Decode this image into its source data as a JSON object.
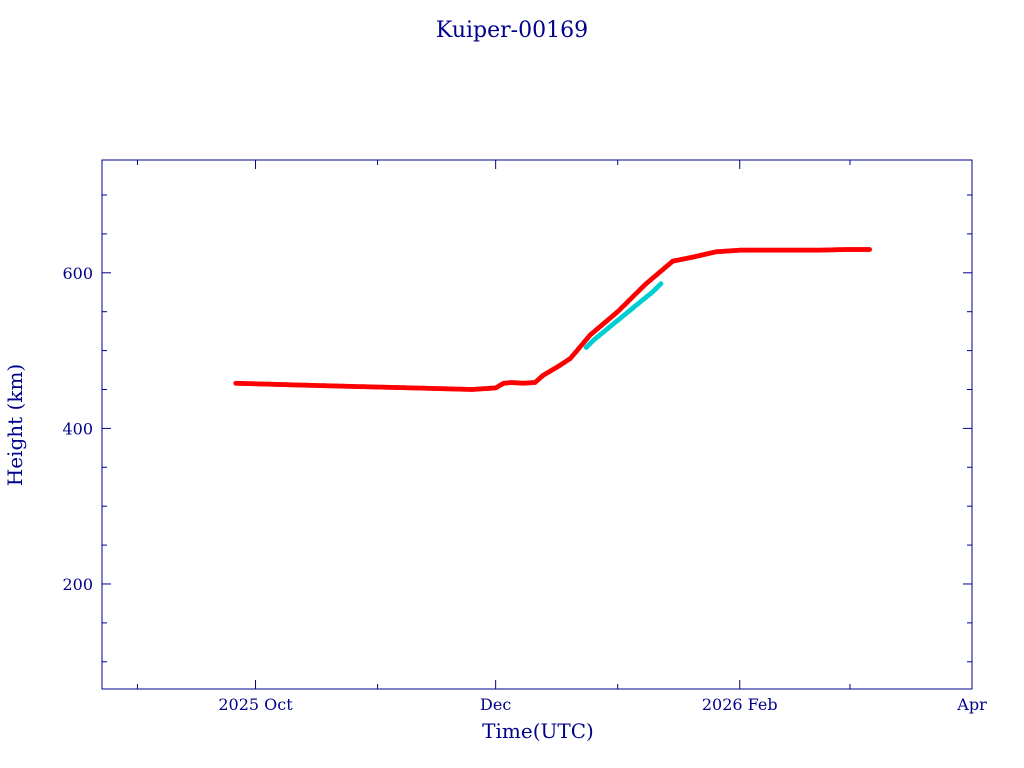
{
  "chart_data": {
    "type": "scatter",
    "title": "Kuiper-00169",
    "xlabel": "Time(UTC)",
    "ylabel": "Height (km)",
    "xlim": [
      "2025-08-23",
      "2026-04-01"
    ],
    "ylim": [
      65,
      745
    ],
    "x_ticks": [
      {
        "date": "2025-10-01",
        "label": "2025 Oct"
      },
      {
        "date": "2025-12-01",
        "label": "Dec"
      },
      {
        "date": "2026-02-01",
        "label": "2026 Feb"
      },
      {
        "date": "2026-04-01",
        "label": "Apr"
      }
    ],
    "x_minor_ticks": [
      "2025-09-01",
      "2025-11-01",
      "2026-01-01",
      "2026-03-01"
    ],
    "y_ticks": [
      200,
      400,
      600
    ],
    "y_minor_ticks": [
      100,
      150,
      250,
      300,
      350,
      450,
      500,
      550,
      650,
      700
    ],
    "grid": false,
    "colors": {
      "axes": "#00008b",
      "series_main": "#ff0000",
      "series_alt": "#00ced1"
    },
    "series": [
      {
        "color": "#ff0000",
        "x": [
          "2025-09-26",
          "2025-10-10",
          "2025-10-25",
          "2025-11-10",
          "2025-11-25",
          "2025-12-01",
          "2025-12-03",
          "2025-12-05",
          "2025-12-08",
          "2025-12-11",
          "2025-12-13",
          "2025-12-17",
          "2025-12-20",
          "2025-12-25",
          "2026-01-01",
          "2026-01-08",
          "2026-01-15",
          "2026-01-20",
          "2026-01-26",
          "2026-02-01",
          "2026-02-10",
          "2026-02-20",
          "2026-03-01",
          "2026-03-06"
        ],
        "y": [
          458,
          456,
          454,
          452,
          450,
          452,
          458,
          459,
          458,
          459,
          468,
          480,
          490,
          520,
          550,
          585,
          615,
          620,
          627,
          629,
          629,
          629,
          630,
          630
        ]
      },
      {
        "color": "#00ced1",
        "x": [
          "2025-12-24",
          "2025-12-26",
          "2026-01-10",
          "2026-01-12"
        ],
        "y": [
          504,
          514,
          576,
          586
        ]
      }
    ]
  }
}
